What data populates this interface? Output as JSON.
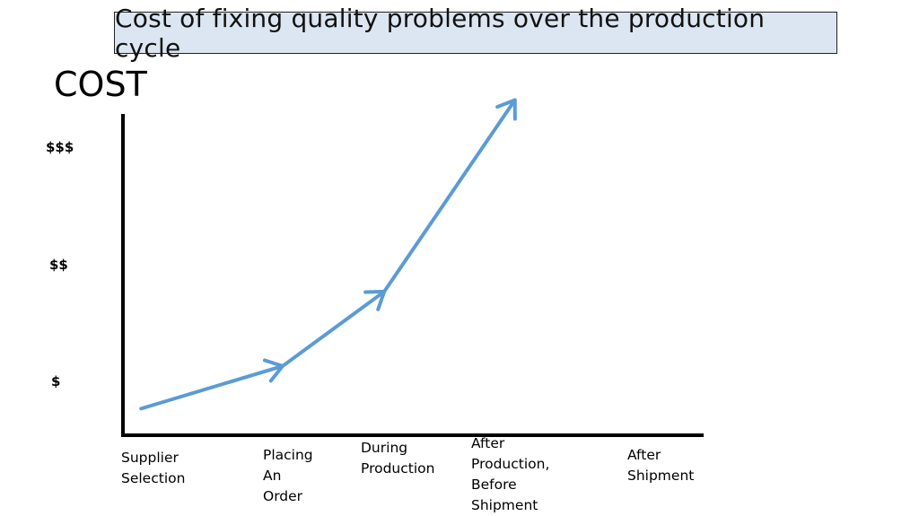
{
  "chart_data": {
    "type": "line",
    "title": "Cost of fixing quality problems over the production cycle",
    "ylabel": "COST",
    "xlabel": "",
    "y_ticks": [
      "$",
      "$$",
      "$$$"
    ],
    "categories": [
      "Supplier\nSelection",
      "Placing\nAn\nOrder",
      "During\nProduction",
      "After\nProduction,\nBefore\nShipment",
      "After\nShipment"
    ],
    "x": [
      0.25,
      2.2,
      3.6,
      5.4
    ],
    "y": [
      0.25,
      0.65,
      1.35,
      3.15
    ],
    "xlim": [
      0,
      8
    ],
    "ylim": [
      0,
      3.5
    ],
    "grid": false,
    "legend": "none",
    "line_color": "#5b9bd5",
    "axis_color": "#000000"
  }
}
